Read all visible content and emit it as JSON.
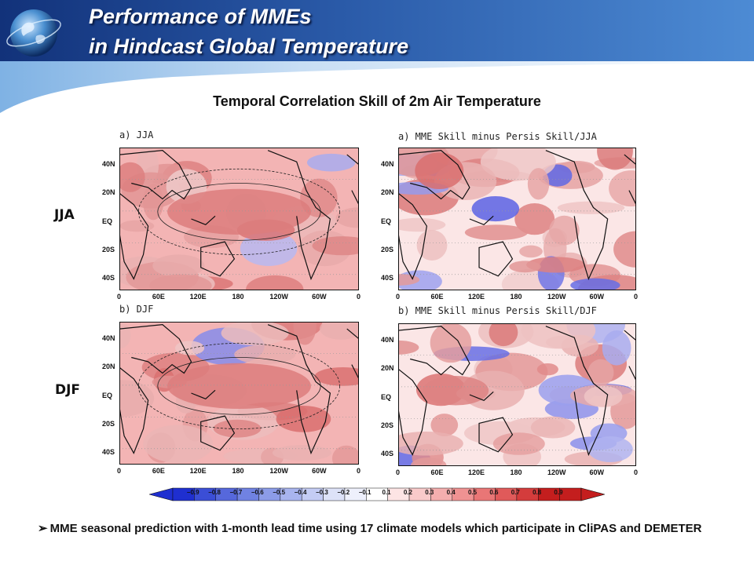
{
  "header": {
    "title_line1": "Performance of MMEs",
    "title_line2": "in Hindcast Global Temperature",
    "bg_color": "#2a5aa8"
  },
  "subtitle": "Temporal Correlation Skill of 2m Air Temperature",
  "row_labels": {
    "jja": "JJA",
    "djf": "DJF"
  },
  "panels": [
    {
      "id": "jja-skill",
      "title": "a) JJA"
    },
    {
      "id": "jja-diff",
      "title": "a) MME Skill minus Persis Skill/JJA"
    },
    {
      "id": "djf-skill",
      "title": "b) DJF"
    },
    {
      "id": "djf-diff",
      "title": "b) MME Skill minus Persis Skill/DJF"
    }
  ],
  "axes": {
    "lat_ticks": [
      "40N",
      "20N",
      "EQ",
      "20S",
      "40S"
    ],
    "lon_ticks": [
      "0",
      "60E",
      "120E",
      "180",
      "120W",
      "60W",
      "0"
    ]
  },
  "colorbar": {
    "labels": [
      "-0.9",
      "-0.8",
      "-0.7",
      "-0.6",
      "-0.5",
      "-0.4",
      "-0.3",
      "-0.2",
      "-0.1",
      "0.1",
      "0.2",
      "0.3",
      "0.4",
      "0.5",
      "0.6",
      "0.7",
      "0.8",
      "0.9"
    ],
    "colors": [
      "#1f2fd0",
      "#3b4ed6",
      "#5668dc",
      "#7082e2",
      "#8c9ce8",
      "#a8b4ee",
      "#c4ccf4",
      "#dde2f8",
      "#eef0fc",
      "#ffffff",
      "#fde4e4",
      "#f9caca",
      "#f4aeae",
      "#ef9292",
      "#e97676",
      "#e05a5a",
      "#d43c3c",
      "#c41e1e",
      "#c41e1e"
    ]
  },
  "bullet_text": "MME seasonal prediction with 1-month lead time using 17 climate models which participate in CliPAS and DEMETER"
}
